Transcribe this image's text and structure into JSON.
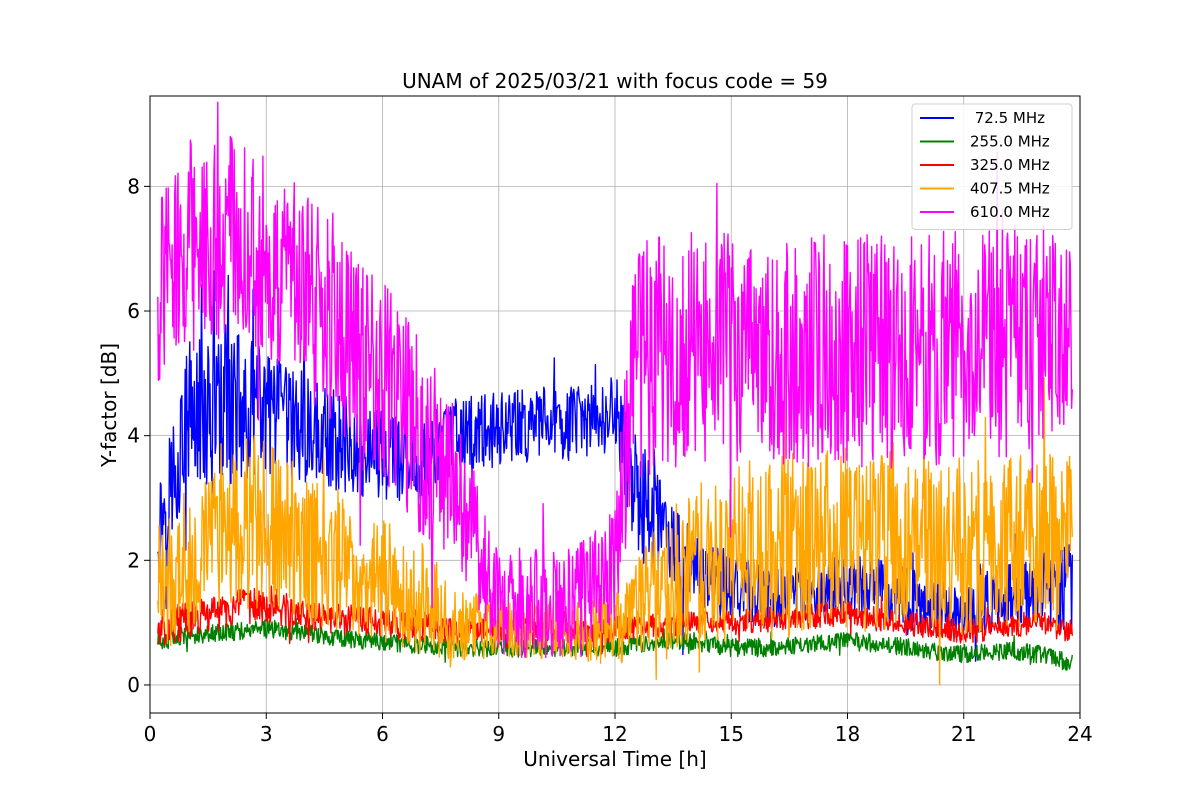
{
  "chart_data": {
    "type": "line",
    "title": "UNAM of 2025/03/21 with focus code = 59",
    "xlabel": "Universal Time [h]",
    "ylabel": "Y-factor [dB]",
    "xlim": [
      0,
      24
    ],
    "ylim": [
      -0.45,
      9.45
    ],
    "xticks": [
      0,
      3,
      6,
      9,
      12,
      15,
      18,
      21,
      24
    ],
    "yticks": [
      0,
      2,
      4,
      6,
      8
    ],
    "grid": true,
    "legend_position": "top-right",
    "x": [
      0.2,
      1,
      2,
      3,
      4,
      5,
      6,
      7,
      7.9,
      9,
      10,
      11,
      12,
      12.5,
      13,
      14,
      15,
      16,
      17,
      18,
      19,
      20,
      21,
      22,
      23,
      23.8
    ],
    "series": [
      {
        "name": " 72.5 MHz",
        "color": "#0000ff",
        "values": [
          2.5,
          4.3,
          4.5,
          4.3,
          4.1,
          3.9,
          3.7,
          3.6,
          4.0,
          4.1,
          4.2,
          4.2,
          4.3,
          3.2,
          2.6,
          1.8,
          1.6,
          1.4,
          1.5,
          1.6,
          1.5,
          1.3,
          1.2,
          1.4,
          1.5,
          1.6
        ],
        "band": [
          0.8,
          1.2,
          1.3,
          1.1,
          0.9,
          0.8,
          0.8,
          0.7,
          0.6,
          0.6,
          0.6,
          0.6,
          0.7,
          1.0,
          1.0,
          0.7,
          0.6,
          0.5,
          0.5,
          0.5,
          0.5,
          0.5,
          0.5,
          0.5,
          0.6,
          0.8
        ]
      },
      {
        "name": "255.0 MHz",
        "color": "#008000",
        "values": [
          0.7,
          0.8,
          0.85,
          0.9,
          0.85,
          0.75,
          0.7,
          0.65,
          0.6,
          0.6,
          0.6,
          0.6,
          0.6,
          0.65,
          0.7,
          0.7,
          0.6,
          0.6,
          0.65,
          0.7,
          0.65,
          0.55,
          0.5,
          0.55,
          0.5,
          0.35
        ],
        "band": [
          0.15,
          0.15,
          0.15,
          0.15,
          0.15,
          0.15,
          0.15,
          0.15,
          0.15,
          0.15,
          0.15,
          0.15,
          0.15,
          0.15,
          0.15,
          0.15,
          0.15,
          0.15,
          0.15,
          0.15,
          0.15,
          0.15,
          0.15,
          0.15,
          0.15,
          0.15
        ]
      },
      {
        "name": "325.0 MHz",
        "color": "#ff0000",
        "values": [
          0.9,
          1.05,
          1.2,
          1.3,
          1.1,
          1.05,
          1.0,
          0.95,
          0.85,
          0.9,
          0.9,
          0.85,
          0.9,
          0.9,
          0.95,
          1.0,
          1.0,
          1.05,
          1.1,
          1.15,
          1.05,
          0.95,
          0.85,
          0.95,
          1.0,
          0.85
        ],
        "band": [
          0.3,
          0.3,
          0.3,
          0.3,
          0.25,
          0.25,
          0.25,
          0.25,
          0.2,
          0.2,
          0.2,
          0.2,
          0.2,
          0.2,
          0.2,
          0.2,
          0.2,
          0.2,
          0.2,
          0.2,
          0.2,
          0.2,
          0.2,
          0.2,
          0.2,
          0.2
        ]
      },
      {
        "name": "407.5 MHz",
        "color": "#ffa500",
        "values": [
          1.5,
          2.0,
          2.6,
          2.6,
          2.2,
          1.9,
          1.7,
          1.4,
          1.0,
          0.9,
          0.9,
          0.9,
          0.9,
          1.1,
          1.5,
          1.9,
          2.1,
          2.2,
          2.3,
          2.4,
          2.3,
          2.2,
          2.2,
          2.3,
          2.4,
          2.5
        ],
        "band": [
          1.0,
          1.2,
          1.4,
          1.4,
          1.2,
          1.1,
          1.0,
          0.9,
          0.6,
          0.5,
          0.5,
          0.5,
          0.6,
          0.8,
          1.0,
          1.3,
          1.4,
          1.5,
          1.5,
          1.5,
          1.5,
          1.4,
          1.4,
          1.4,
          1.4,
          1.3
        ]
      },
      {
        "name": "610.0 MHz",
        "color": "#ff00ff",
        "values": [
          6.3,
          7.2,
          7.2,
          6.9,
          6.3,
          5.6,
          4.9,
          4.0,
          3.2,
          1.3,
          1.3,
          1.4,
          1.8,
          5.2,
          5.3,
          5.4,
          5.4,
          5.4,
          5.4,
          5.4,
          5.3,
          5.4,
          5.5,
          5.5,
          5.6,
          5.8
        ],
        "band": [
          1.5,
          1.6,
          1.7,
          1.6,
          1.6,
          1.6,
          1.6,
          1.6,
          1.2,
          0.8,
          0.9,
          0.9,
          1.0,
          1.9,
          1.9,
          1.9,
          1.9,
          1.9,
          1.9,
          1.9,
          1.9,
          1.9,
          1.9,
          1.9,
          1.8,
          1.6
        ]
      }
    ]
  }
}
